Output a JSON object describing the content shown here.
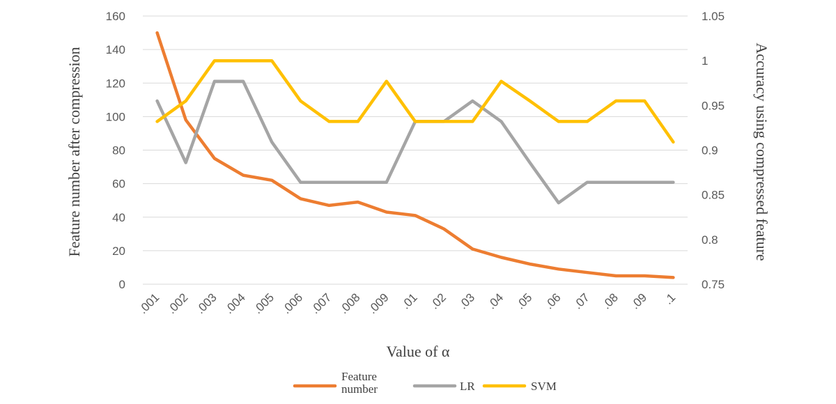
{
  "chart_data": {
    "type": "line",
    "categories": [
      ".001",
      ".002",
      ".003",
      ".004",
      ".005",
      ".006",
      ".007",
      ".008",
      ".009",
      ".01",
      ".02",
      ".03",
      ".04",
      ".05",
      ".06",
      ".07",
      ".08",
      ".09",
      ".1"
    ],
    "xlabel": "Value of α",
    "ylabel_left": "Feature number after compression",
    "ylabel_right": "Accuracy using compressed feature",
    "ylim_left": [
      0,
      160
    ],
    "ylim_right": [
      0.75,
      1.05
    ],
    "yticks_left": [
      "0",
      "20",
      "40",
      "60",
      "80",
      "100",
      "120",
      "140",
      "160"
    ],
    "yticks_right": [
      "0.75",
      "0.8",
      "0.85",
      "0.9",
      "0.95",
      "1",
      "1.05"
    ],
    "grid": true,
    "legend_position": "bottom",
    "series": [
      {
        "name": "Feature number",
        "axis": "left",
        "color": "#ED7D31",
        "values": [
          150,
          98,
          75,
          65,
          62,
          51,
          47,
          49,
          43,
          41,
          33,
          21,
          16,
          12,
          9,
          7,
          5,
          5,
          4
        ]
      },
      {
        "name": "LR",
        "axis": "right",
        "color": "#A5A5A5",
        "values": [
          0.955,
          0.886,
          0.977,
          0.977,
          0.909,
          0.864,
          0.864,
          0.864,
          0.864,
          0.932,
          0.932,
          0.955,
          0.932,
          0.886,
          0.841,
          0.864,
          0.864,
          0.864,
          0.864
        ]
      },
      {
        "name": "SVM",
        "axis": "right",
        "color": "#FFC000",
        "values": [
          0.932,
          0.955,
          1.0,
          1.0,
          1.0,
          0.955,
          0.932,
          0.932,
          0.977,
          0.932,
          0.932,
          0.932,
          0.977,
          0.955,
          0.932,
          0.932,
          0.955,
          0.955,
          0.909
        ]
      }
    ]
  }
}
